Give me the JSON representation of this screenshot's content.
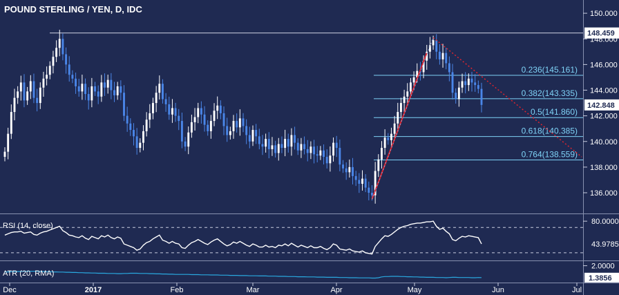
{
  "title": "POUND STERLING / YEN, D, IDC",
  "colors": {
    "background": "#1f2a52",
    "up_candle": "#ffffff",
    "down_candle": "#4a86e8",
    "fib_line": "#7fd3f7",
    "trend_line": "#e0242e",
    "rsi_line": "#ffffff",
    "atr_line": "#2aa9e0",
    "axis_text": "#ffffff",
    "price_badge": "#ffffff"
  },
  "chart_data": [
    {
      "type": "candlestick",
      "title": "POUND STERLING / YEN, D, IDC",
      "ylim": [
        134.6,
        150.6
      ],
      "y_ticks": [
        136.0,
        138.0,
        140.0,
        142.0,
        144.0,
        146.0,
        148.0,
        150.0
      ],
      "x_ticks": [
        "Dec",
        "2017",
        "Feb",
        "Mar",
        "Apr",
        "May",
        "Jun",
        "Jul"
      ],
      "price_badges": [
        {
          "label": "148.459",
          "value": 148.459,
          "style": "light"
        },
        {
          "label": "142.848",
          "value": 142.848,
          "style": "light"
        }
      ],
      "horizontal_level": 148.459,
      "fibonacci": [
        {
          "label": "0.236(145.161)",
          "value": 145.161
        },
        {
          "label": "0.382(143.335)",
          "value": 143.335
        },
        {
          "label": "0.5(141.860)",
          "value": 141.86
        },
        {
          "label": "0.618(140.385)",
          "value": 140.385
        },
        {
          "label": "0.764(138.559)",
          "value": 138.559
        }
      ],
      "series": [
        {
          "name": "close",
          "values": [
            139.2,
            140.6,
            142.3,
            143.4,
            143.9,
            144.6,
            143.2,
            143.9,
            144.7,
            143.4,
            143.0,
            144.2,
            144.9,
            145.2,
            145.9,
            146.6,
            147.3,
            148.0,
            146.8,
            146.0,
            145.2,
            144.9,
            144.3,
            143.9,
            144.5,
            143.7,
            143.2,
            144.3,
            143.9,
            143.5,
            144.6,
            144.2,
            144.8,
            144.0,
            143.6,
            144.3,
            143.8,
            142.0,
            141.4,
            140.9,
            140.4,
            139.5,
            139.9,
            140.8,
            141.7,
            142.2,
            143.0,
            143.8,
            144.5,
            143.3,
            142.9,
            142.1,
            142.6,
            142.0,
            141.6,
            140.0,
            139.6,
            140.7,
            141.5,
            141.9,
            142.6,
            142.1,
            141.3,
            140.8,
            141.6,
            142.4,
            142.8,
            142.2,
            141.2,
            140.5,
            140.8,
            141.6,
            141.1,
            141.8,
            141.2,
            140.5,
            140.0,
            140.9,
            140.4,
            139.8,
            139.6,
            140.2,
            139.4,
            139.7,
            139.1,
            139.8,
            139.5,
            140.2,
            139.6,
            140.5,
            139.9,
            139.3,
            139.8,
            139.4,
            139.1,
            139.6,
            139.0,
            138.9,
            139.3,
            138.8,
            138.3,
            138.9,
            139.9,
            139.5,
            138.2,
            137.9,
            137.6,
            138.0,
            137.3,
            137.0,
            136.7,
            137.1,
            136.4,
            136.0,
            135.8,
            137.7,
            138.6,
            139.5,
            140.3,
            140.1,
            140.6,
            141.4,
            142.3,
            143.0,
            143.5,
            143.9,
            144.6,
            145.0,
            145.5,
            145.4,
            146.3,
            147.0,
            147.5,
            147.9,
            147.0,
            146.4,
            146.9,
            146.1,
            145.4,
            143.8,
            143.3,
            144.2,
            144.7,
            144.4,
            144.9,
            144.6,
            144.4,
            144.1,
            142.85
          ]
        },
        {
          "name": "RSI (14, close)",
          "values": [
            58,
            60,
            62,
            63,
            63,
            64,
            61,
            62,
            63,
            59,
            58,
            61,
            63,
            64,
            66,
            68,
            70,
            72,
            65,
            62,
            58,
            57,
            55,
            54,
            57,
            53,
            51,
            56,
            54,
            52,
            57,
            55,
            58,
            54,
            52,
            55,
            53,
            44,
            42,
            40,
            38,
            34,
            36,
            42,
            46,
            48,
            52,
            55,
            58,
            50,
            48,
            45,
            48,
            45,
            44,
            38,
            37,
            42,
            46,
            48,
            51,
            48,
            45,
            43,
            47,
            50,
            52,
            48,
            44,
            41,
            43,
            47,
            45,
            48,
            45,
            42,
            40,
            44,
            42,
            39,
            39,
            42,
            39,
            40,
            38,
            42,
            41,
            44,
            41,
            45,
            42,
            39,
            42,
            40,
            38,
            41,
            38,
            38,
            40,
            37,
            35,
            38,
            44,
            42,
            36,
            35,
            34,
            36,
            33,
            32,
            31,
            33,
            30,
            29,
            28,
            40,
            46,
            52,
            57,
            56,
            59,
            63,
            67,
            70,
            72,
            73,
            75,
            76,
            77,
            77,
            78,
            79,
            79,
            80,
            72,
            67,
            69,
            64,
            60,
            51,
            49,
            53,
            56,
            55,
            57,
            56,
            55,
            54,
            44
          ]
        },
        {
          "name": "ATR (20, RMA)",
          "values": [
            1.68,
            1.68,
            1.69,
            1.7,
            1.7,
            1.7,
            1.71,
            1.71,
            1.71,
            1.71,
            1.71,
            1.7,
            1.7,
            1.69,
            1.69,
            1.68,
            1.68,
            1.67,
            1.67,
            1.66,
            1.66,
            1.65,
            1.65,
            1.64,
            1.64,
            1.63,
            1.63,
            1.62,
            1.62,
            1.61,
            1.61,
            1.61,
            1.6,
            1.6,
            1.6,
            1.59,
            1.59,
            1.6,
            1.6,
            1.61,
            1.61,
            1.61,
            1.6,
            1.6,
            1.6,
            1.59,
            1.59,
            1.58,
            1.58,
            1.57,
            1.57,
            1.56,
            1.56,
            1.55,
            1.55,
            1.55,
            1.55,
            1.55,
            1.54,
            1.54,
            1.54,
            1.53,
            1.53,
            1.53,
            1.52,
            1.52,
            1.52,
            1.51,
            1.51,
            1.51,
            1.5,
            1.5,
            1.5,
            1.49,
            1.49,
            1.49,
            1.48,
            1.48,
            1.48,
            1.47,
            1.47,
            1.47,
            1.46,
            1.46,
            1.46,
            1.45,
            1.45,
            1.45,
            1.44,
            1.44,
            1.44,
            1.43,
            1.43,
            1.43,
            1.42,
            1.42,
            1.42,
            1.41,
            1.41,
            1.41,
            1.4,
            1.4,
            1.4,
            1.4,
            1.39,
            1.39,
            1.39,
            1.38,
            1.38,
            1.38,
            1.37,
            1.37,
            1.37,
            1.37,
            1.36,
            1.36,
            1.38,
            1.42,
            1.44,
            1.44,
            1.45,
            1.45,
            1.45,
            1.44,
            1.44,
            1.43,
            1.43,
            1.42,
            1.42,
            1.41,
            1.41,
            1.4,
            1.4,
            1.4,
            1.39,
            1.39,
            1.39,
            1.38,
            1.39,
            1.4,
            1.4,
            1.39,
            1.39,
            1.39,
            1.39,
            1.38,
            1.38,
            1.39,
            1.3856
          ]
        }
      ]
    },
    {
      "type": "line",
      "name": "RSI",
      "legend": "RSI (14, close)",
      "ylim": [
        20,
        90
      ],
      "y_ticks": [
        80.0
      ],
      "y_tick_labels": [
        "80.0000"
      ],
      "dashed_levels": [
        70,
        30
      ],
      "last_value": "43.9785"
    },
    {
      "type": "line",
      "name": "ATR",
      "legend": "ATR (20, RMA)",
      "ylim": [
        1.2,
        2.2
      ],
      "y_ticks": [
        2.0
      ],
      "y_tick_labels": [
        "2.0000"
      ],
      "last_value": "1.3856"
    }
  ]
}
